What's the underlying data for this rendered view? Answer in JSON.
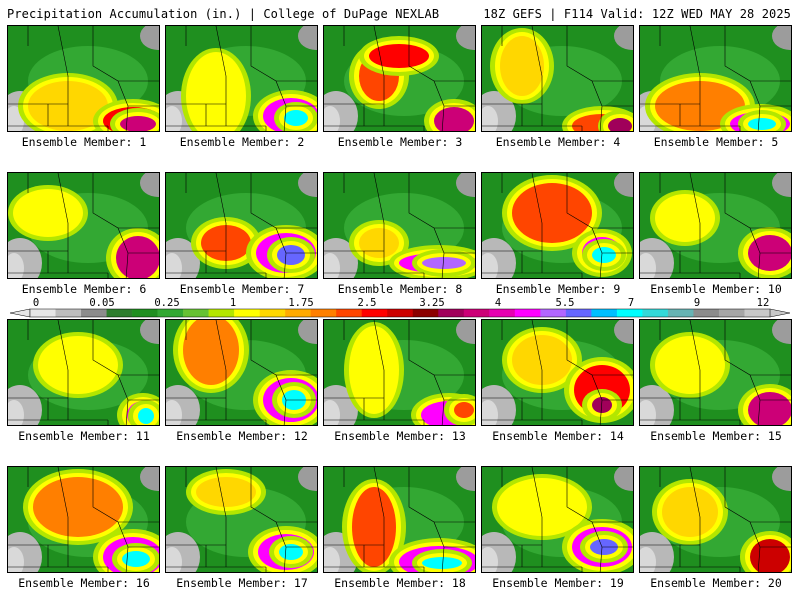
{
  "header": {
    "left": "Precipitation Accumulation (in.) | College of DuPage NEXLAB",
    "right": "18Z GEFS | F114 Valid: 12Z WED MAY 28 2025"
  },
  "colorbar": {
    "tick_labels": [
      "0",
      "0.05",
      "0.25",
      "1",
      "1.75",
      "2.5",
      "3.25",
      "4",
      "5.5",
      "7",
      "9",
      "12"
    ],
    "colors": [
      "#e6e6e6",
      "#bdbdbd",
      "#8c8c8c",
      "#2e7d2e",
      "#1f8f1f",
      "#33a833",
      "#66c233",
      "#b3e600",
      "#ffff00",
      "#ffd700",
      "#ffaa00",
      "#ff7f00",
      "#ff4500",
      "#ff0000",
      "#cc0000",
      "#8b0000",
      "#a0005a",
      "#cc0077",
      "#e600b0",
      "#ff00ff",
      "#b266ff",
      "#6666ff",
      "#00bfff",
      "#00ffff",
      "#33d9d9",
      "#66b3b3",
      "#8c8c8c",
      "#a6a6a6",
      "#c8c8c8"
    ]
  },
  "panels": [
    {
      "label": "Ensemble Member: 1"
    },
    {
      "label": "Ensemble Member: 2"
    },
    {
      "label": "Ensemble Member: 3"
    },
    {
      "label": "Ensemble Member: 4"
    },
    {
      "label": "Ensemble Member: 5"
    },
    {
      "label": "Ensemble Member: 6"
    },
    {
      "label": "Ensemble Member: 7"
    },
    {
      "label": "Ensemble Member: 8"
    },
    {
      "label": "Ensemble Member: 9"
    },
    {
      "label": "Ensemble Member: 10"
    },
    {
      "label": "Ensemble Member: 11"
    },
    {
      "label": "Ensemble Member: 12"
    },
    {
      "label": "Ensemble Member: 13"
    },
    {
      "label": "Ensemble Member: 14"
    },
    {
      "label": "Ensemble Member: 15"
    },
    {
      "label": "Ensemble Member: 16"
    },
    {
      "label": "Ensemble Member: 17"
    },
    {
      "label": "Ensemble Member: 18"
    },
    {
      "label": "Ensemble Member: 19"
    },
    {
      "label": "Ensemble Member: 20"
    }
  ]
}
